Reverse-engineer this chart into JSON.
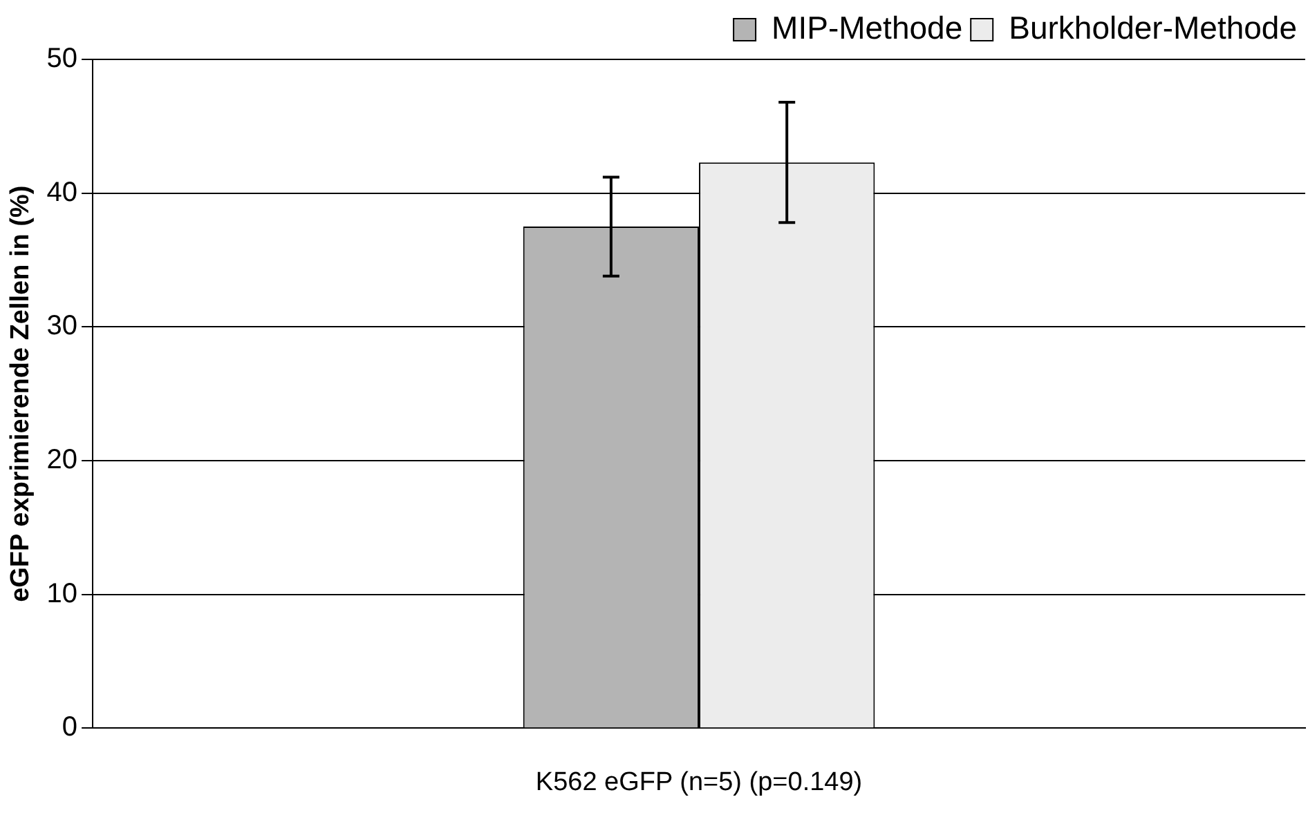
{
  "chart_data": {
    "type": "bar",
    "ylabel": "eGFP exprimierende Zellen in (%)",
    "categories": [
      "K562 eGFP (n=5) (p=0.149)"
    ],
    "series": [
      {
        "name": "MIP-Methode",
        "color": "#b4b4b4",
        "values": [
          37.5
        ],
        "errors": [
          [
            33.8,
            41.2
          ]
        ]
      },
      {
        "name": "Burkholder-Methode",
        "color": "#ececec",
        "values": [
          42.3
        ],
        "errors": [
          [
            37.8,
            46.8
          ]
        ]
      }
    ],
    "ylim": [
      0,
      50
    ],
    "yticks": [
      0,
      10,
      20,
      30,
      40,
      50
    ],
    "grid": "y",
    "legend": "top right"
  }
}
